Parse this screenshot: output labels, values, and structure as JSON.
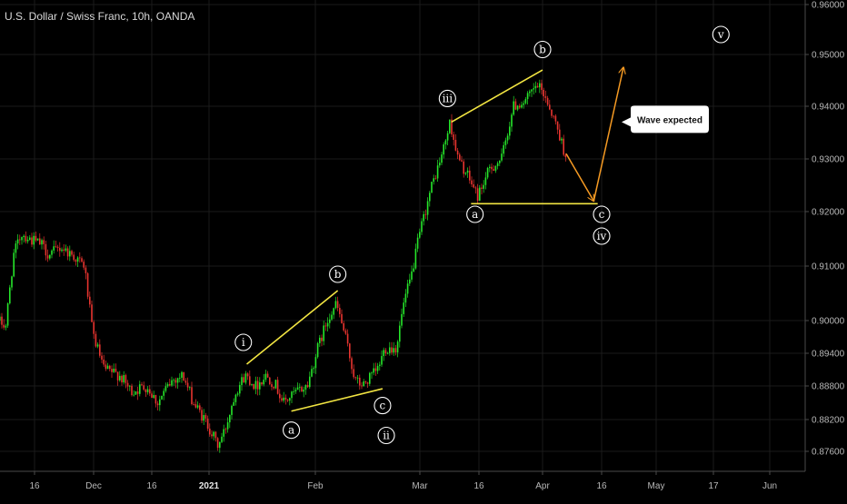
{
  "chart_data": {
    "type": "candlestick",
    "title": "U.S. Dollar / Swiss Franc, 10h, OANDA",
    "y_axis": {
      "position": "right",
      "range": [
        0.873,
        0.961
      ],
      "ticks": [
        "0.87600",
        "0.88200",
        "0.88800",
        "0.89400",
        "0.90000",
        "0.91000",
        "0.92000",
        "0.93000",
        "0.94000",
        "0.95000",
        "0.96000"
      ]
    },
    "x_axis": {
      "ticks": [
        {
          "label": "16",
          "date": "2020-11-16",
          "bold": false
        },
        {
          "label": "Dec",
          "date": "2020-12-01",
          "bold": false
        },
        {
          "label": "16",
          "date": "2020-12-16",
          "bold": false
        },
        {
          "label": "2021",
          "date": "2021-01-01",
          "bold": true
        },
        {
          "label": "Feb",
          "date": "2021-02-01",
          "bold": false
        },
        {
          "label": "Mar",
          "date": "2021-03-01",
          "bold": false
        },
        {
          "label": "16",
          "date": "2021-03-16",
          "bold": false
        },
        {
          "label": "Apr",
          "date": "2021-04-01",
          "bold": false
        },
        {
          "label": "16",
          "date": "2021-04-16",
          "bold": false
        },
        {
          "label": "May",
          "date": "2021-05-01",
          "bold": false
        },
        {
          "label": "17",
          "date": "2021-05-17",
          "bold": false
        },
        {
          "label": "Jun",
          "date": "2021-06-01",
          "bold": false
        }
      ]
    },
    "colors": {
      "background": "#000000",
      "up": "#26e62a",
      "down": "#e8342f",
      "trendline": "#f2e542",
      "projection": "#f59a23",
      "grid": "#1a1a1a",
      "axis_text": "#b8b8b8"
    },
    "price_path": [
      [
        "2020-11-07",
        0.9
      ],
      [
        "2020-11-09",
        0.899
      ],
      [
        "2020-11-11",
        0.912
      ],
      [
        "2020-11-13",
        0.916
      ],
      [
        "2020-11-15",
        0.915
      ],
      [
        "2020-11-18",
        0.914
      ],
      [
        "2020-11-20",
        0.912
      ],
      [
        "2020-11-23",
        0.9135
      ],
      [
        "2020-11-26",
        0.912
      ],
      [
        "2020-11-29",
        0.91
      ],
      [
        "2020-12-01",
        0.898
      ],
      [
        "2020-12-04",
        0.891
      ],
      [
        "2020-12-08",
        0.89
      ],
      [
        "2020-12-11",
        0.887
      ],
      [
        "2020-12-15",
        0.888
      ],
      [
        "2020-12-18",
        0.885
      ],
      [
        "2020-12-22",
        0.889
      ],
      [
        "2020-12-25",
        0.89
      ],
      [
        "2020-12-28",
        0.885
      ],
      [
        "2021-01-01",
        0.881
      ],
      [
        "2021-01-04",
        0.877
      ],
      [
        "2021-01-06",
        0.88
      ],
      [
        "2021-01-09",
        0.887
      ],
      [
        "2021-01-12",
        0.89
      ],
      [
        "2021-01-15",
        0.888
      ],
      [
        "2021-01-18",
        0.89
      ],
      [
        "2021-01-21",
        0.888
      ],
      [
        "2021-01-23",
        0.885
      ],
      [
        "2021-01-27",
        0.887
      ],
      [
        "2021-01-30",
        0.888
      ],
      [
        "2021-02-02",
        0.895
      ],
      [
        "2021-02-05",
        0.901
      ],
      [
        "2021-02-07",
        0.903
      ],
      [
        "2021-02-09",
        0.898
      ],
      [
        "2021-02-12",
        0.889
      ],
      [
        "2021-02-14",
        0.888
      ],
      [
        "2021-02-16",
        0.8895
      ],
      [
        "2021-02-18",
        0.891
      ],
      [
        "2021-02-20",
        0.895
      ],
      [
        "2021-02-23",
        0.895
      ],
      [
        "2021-02-25",
        0.903
      ],
      [
        "2021-02-27",
        0.908
      ],
      [
        "2021-03-01",
        0.915
      ],
      [
        "2021-03-04",
        0.924
      ],
      [
        "2021-03-07",
        0.931
      ],
      [
        "2021-03-09",
        0.937
      ],
      [
        "2021-03-11",
        0.93
      ],
      [
        "2021-03-14",
        0.926
      ],
      [
        "2021-03-16",
        0.923
      ],
      [
        "2021-03-19",
        0.928
      ],
      [
        "2021-03-22",
        0.93
      ],
      [
        "2021-03-25",
        0.94
      ],
      [
        "2021-03-28",
        0.941
      ],
      [
        "2021-03-31",
        0.944
      ],
      [
        "2021-04-02",
        0.942
      ],
      [
        "2021-04-05",
        0.936
      ],
      [
        "2021-04-07",
        0.931
      ]
    ],
    "trendlines": [
      {
        "from": [
          "2021-01-12",
          0.892
        ],
        "to": [
          "2021-02-07",
          0.9055
        ]
      },
      {
        "from": [
          "2021-01-25",
          0.8835
        ],
        "to": [
          "2021-02-19",
          0.8875
        ]
      },
      {
        "from": [
          "2021-03-09",
          0.937
        ],
        "to": [
          "2021-04-01",
          0.947
        ]
      },
      {
        "from": [
          "2021-03-14",
          0.9215
        ],
        "to": [
          "2021-04-15",
          0.9215
        ]
      }
    ],
    "projection": [
      [
        "2021-04-07",
        0.931
      ],
      [
        "2021-04-14",
        0.922
      ],
      [
        "2021-04-22",
        0.9475
      ]
    ],
    "wave_labels": [
      {
        "text": "i",
        "date": "2021-01-11",
        "value": 0.896
      },
      {
        "text": "a",
        "date": "2021-01-25",
        "value": 0.88
      },
      {
        "text": "b",
        "date": "2021-02-07",
        "value": 0.9085
      },
      {
        "text": "c",
        "date": "2021-02-19",
        "value": 0.8845
      },
      {
        "text": "ii",
        "date": "2021-02-20",
        "value": 0.879
      },
      {
        "text": "iii",
        "date": "2021-03-08",
        "value": 0.9415
      },
      {
        "text": "b",
        "date": "2021-04-01",
        "value": 0.951
      },
      {
        "text": "a",
        "date": "2021-03-15",
        "value": 0.9195
      },
      {
        "text": "c",
        "date": "2021-04-16",
        "value": 0.9195
      },
      {
        "text": "iv",
        "date": "2021-04-16",
        "value": 0.9155
      },
      {
        "text": "v",
        "date": "2021-05-19",
        "value": 0.954
      }
    ],
    "callout": {
      "text": "Wave expected",
      "date": "2021-04-24",
      "value": 0.937
    }
  }
}
